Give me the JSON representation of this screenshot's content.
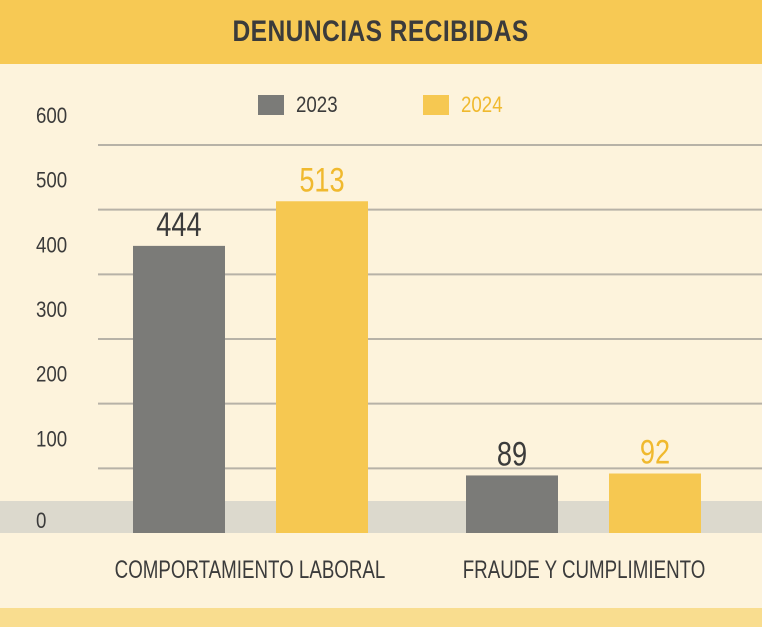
{
  "colors": {
    "y2023": "#7b7b78",
    "y2024": "#f6c851",
    "text": "#3b3b3b",
    "grid": "#b7b2a7",
    "zero_band": "#dcd9cd"
  },
  "chart_data": {
    "type": "bar",
    "title": "DENUNCIAS RECIBIDAS",
    "categories": [
      "COMPORTAMIENTO LABORAL",
      "FRAUDE Y CUMPLIMIENTO"
    ],
    "series": [
      {
        "name": "2023",
        "values": [
          444,
          89
        ]
      },
      {
        "name": "2024",
        "values": [
          513,
          92
        ]
      }
    ],
    "yticks": [
      0,
      100,
      200,
      300,
      400,
      500,
      600
    ],
    "ylim": [
      0,
      600
    ],
    "grid": true,
    "legend": "top-center"
  }
}
